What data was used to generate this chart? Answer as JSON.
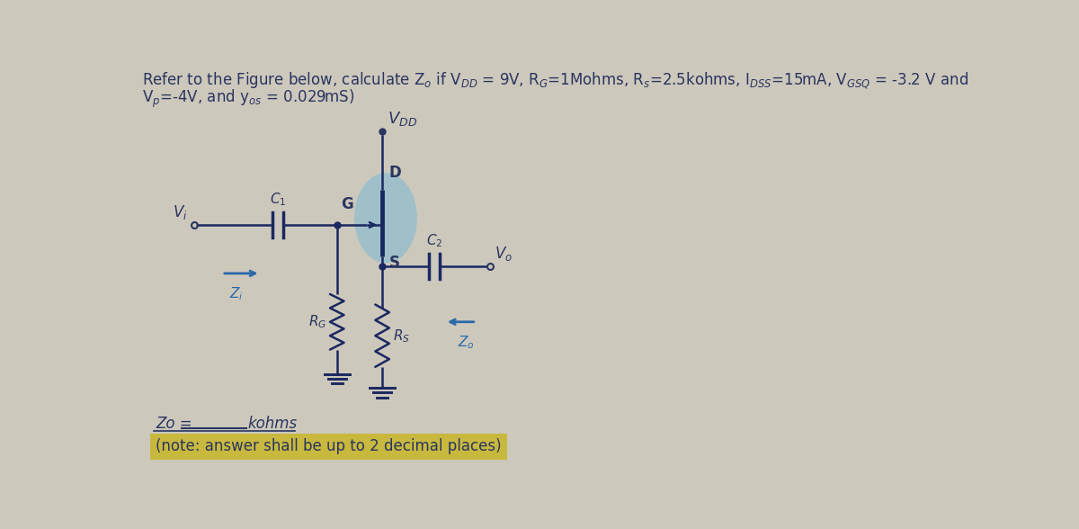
{
  "title_line1": "Refer to the Figure below, calculate Z$_o$ if V$_{DD}$ = 9V, R$_G$=1Mohms, R$_s$=2.5kohms, I$_{DSS}$=15mA, V$_{GSQ}$ = -3.2 V and",
  "title_line2": "V$_p$=-4V, and y$_{os}$ = 0.029mS)",
  "bottom_line1": "Zo =     kohms",
  "bottom_line2": "(note: answer shall be up to 2 decimal places)",
  "bg_color": "#cdc8bc",
  "text_color": "#2a3560",
  "highlight_color": "#c8b830",
  "circuit_color": "#1a2860",
  "mosfet_highlight": "#7ab8d4",
  "arrow_color": "#2a6aaa"
}
